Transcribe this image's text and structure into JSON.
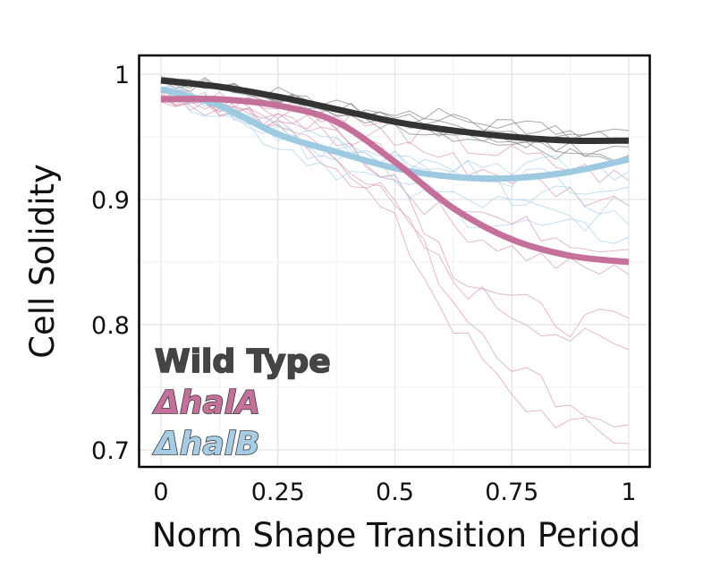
{
  "chart_data": {
    "type": "line",
    "title": "",
    "xlabel": "Norm Shape Transition Period",
    "ylabel": "Cell Solidity",
    "xlim": [
      -0.04,
      1.045
    ],
    "ylim": [
      0.686,
      1.015
    ],
    "x_ticks": [
      0,
      0.25,
      0.5,
      0.75,
      1
    ],
    "x_tick_labels": [
      "0",
      "0.25",
      "0.5",
      "0.75",
      "1"
    ],
    "y_ticks": [
      0.7,
      0.8,
      0.9,
      1.0
    ],
    "y_tick_labels": [
      "0.7",
      "0.8",
      "0.9",
      "1"
    ],
    "grid": true,
    "legend_placement": "bottom-left",
    "x": [
      0,
      0.125,
      0.25,
      0.375,
      0.5,
      0.625,
      0.75,
      0.875,
      1
    ],
    "series": [
      {
        "name": "Wild Type",
        "color": "#333333",
        "trace_color": "#8a8a8a",
        "values": [
          0.995,
          0.99,
          0.982,
          0.972,
          0.962,
          0.955,
          0.95,
          0.947,
          0.947
        ]
      },
      {
        "name": "ΔhalA",
        "color": "#c4709a",
        "trace_color": "#d99ab5",
        "values": [
          0.98,
          0.98,
          0.975,
          0.962,
          0.93,
          0.893,
          0.868,
          0.855,
          0.85
        ]
      },
      {
        "name": "ΔhalB",
        "color": "#9ecae1",
        "trace_color": "#a9d2ea",
        "values": [
          0.988,
          0.975,
          0.952,
          0.938,
          0.925,
          0.918,
          0.917,
          0.922,
          0.932
        ]
      }
    ],
    "individual_traces": {
      "description": "Thin per-cell trajectories behind the trend lines",
      "x": [
        0,
        0.125,
        0.25,
        0.375,
        0.5,
        0.625,
        0.75,
        0.875,
        1
      ],
      "Wild Type": [
        [
          0.998,
          0.992,
          0.985,
          0.976,
          0.968,
          0.96,
          0.958,
          0.952,
          0.955
        ],
        [
          0.996,
          0.99,
          0.983,
          0.975,
          0.962,
          0.965,
          0.955,
          0.95,
          0.948
        ],
        [
          0.994,
          0.988,
          0.98,
          0.97,
          0.958,
          0.952,
          0.945,
          0.94,
          0.942
        ],
        [
          0.993,
          0.989,
          0.982,
          0.973,
          0.965,
          0.97,
          0.96,
          0.955,
          0.945
        ],
        [
          0.995,
          0.991,
          0.984,
          0.971,
          0.96,
          0.95,
          0.948,
          0.942,
          0.935
        ],
        [
          0.997,
          0.99,
          0.981,
          0.968,
          0.955,
          0.948,
          0.944,
          0.935,
          0.93
        ]
      ],
      "ΔhalA": [
        [
          0.985,
          0.975,
          0.965,
          0.95,
          0.915,
          0.88,
          0.86,
          0.845,
          0.84
        ],
        [
          0.982,
          0.978,
          0.96,
          0.935,
          0.9,
          0.82,
          0.77,
          0.735,
          0.72
        ],
        [
          0.98,
          0.97,
          0.955,
          0.93,
          0.88,
          0.8,
          0.74,
          0.72,
          0.705
        ],
        [
          0.978,
          0.975,
          0.958,
          0.94,
          0.89,
          0.835,
          0.81,
          0.79,
          0.78
        ],
        [
          0.983,
          0.977,
          0.968,
          0.952,
          0.92,
          0.845,
          0.82,
          0.8,
          0.805
        ],
        [
          0.981,
          0.976,
          0.966,
          0.955,
          0.935,
          0.9,
          0.88,
          0.87,
          0.86
        ],
        [
          0.984,
          0.979,
          0.972,
          0.962,
          0.948,
          0.93,
          0.918,
          0.905,
          0.895
        ],
        [
          0.986,
          0.98,
          0.974,
          0.965,
          0.955,
          0.945,
          0.935,
          0.925,
          0.915
        ]
      ],
      "ΔhalB": [
        [
          0.99,
          0.978,
          0.955,
          0.94,
          0.93,
          0.925,
          0.92,
          0.915,
          0.91
        ],
        [
          0.988,
          0.972,
          0.945,
          0.925,
          0.91,
          0.89,
          0.88,
          0.875,
          0.87
        ],
        [
          0.986,
          0.975,
          0.95,
          0.935,
          0.92,
          0.9,
          0.895,
          0.885,
          0.88
        ],
        [
          0.989,
          0.98,
          0.96,
          0.945,
          0.935,
          0.93,
          0.928,
          0.925,
          0.922
        ],
        [
          0.987,
          0.977,
          0.958,
          0.942,
          0.93,
          0.915,
          0.905,
          0.9,
          0.895
        ]
      ]
    }
  },
  "legend": {
    "items": [
      {
        "label": "Wild Type",
        "color": "#454545",
        "italic": false
      },
      {
        "label": "ΔhalA",
        "color": "#c4709a",
        "italic": true
      },
      {
        "label": "ΔhalB",
        "color": "#a6cde3",
        "italic": true
      }
    ]
  }
}
